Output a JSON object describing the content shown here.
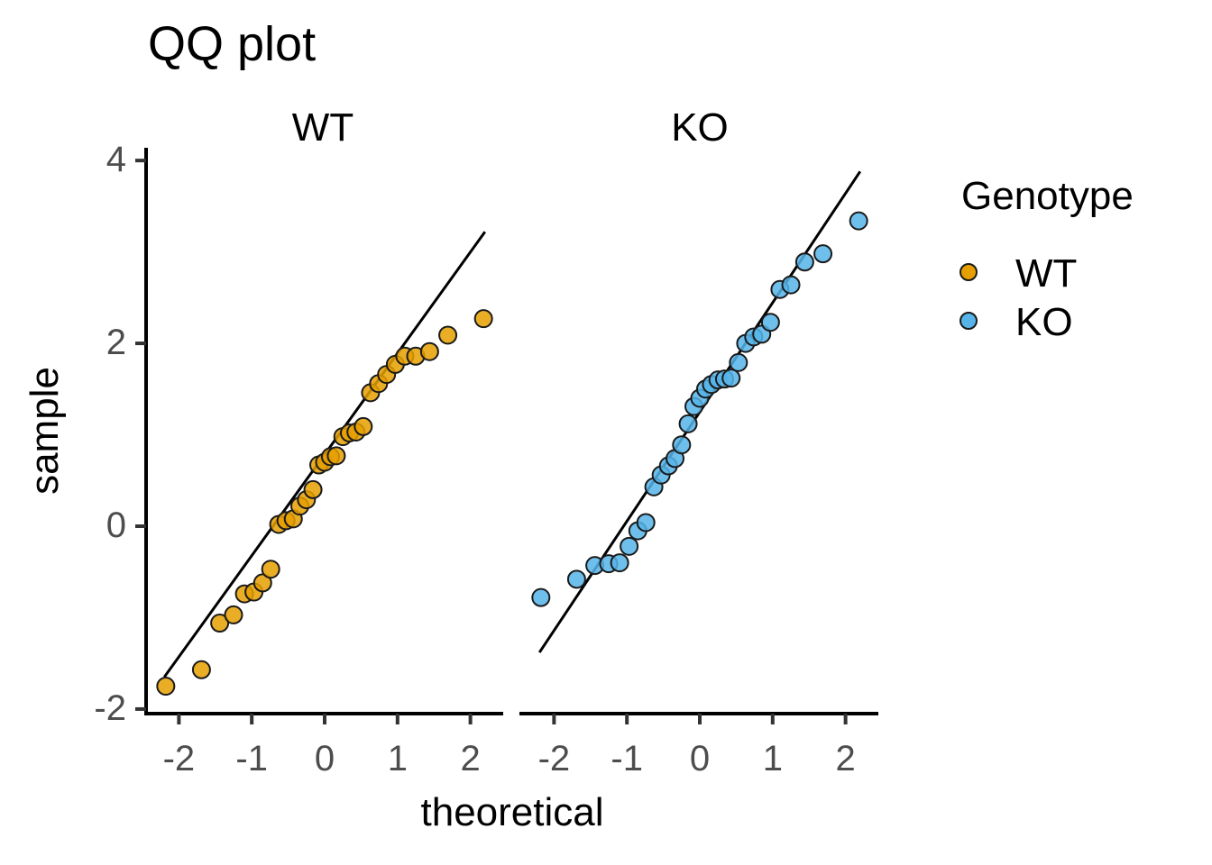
{
  "chart_data": {
    "type": "scatter",
    "title": "QQ plot",
    "xlabel": "theoretical",
    "ylabel": "sample",
    "xlim": [
      -2.45,
      2.45
    ],
    "ylim": [
      -2.05,
      4.1
    ],
    "x_ticks": [
      "-2",
      "-1",
      "0",
      "1",
      "2"
    ],
    "y_ticks": [
      "-2",
      "0",
      "2",
      "4"
    ],
    "legend": {
      "title": "Genotype",
      "position": "right"
    },
    "panels": [
      {
        "name": "WT",
        "color": "#E69F00",
        "line": {
          "x": [
            -2.2,
            2.2
          ],
          "y": [
            -1.65,
            3.22
          ]
        },
        "points": [
          {
            "x": -2.18,
            "y": -1.75
          },
          {
            "x": -1.69,
            "y": -1.57
          },
          {
            "x": -1.44,
            "y": -1.06
          },
          {
            "x": -1.25,
            "y": -0.97
          },
          {
            "x": -1.1,
            "y": -0.74
          },
          {
            "x": -0.97,
            "y": -0.72
          },
          {
            "x": -0.85,
            "y": -0.62
          },
          {
            "x": -0.74,
            "y": -0.47
          },
          {
            "x": -0.63,
            "y": 0.02
          },
          {
            "x": -0.53,
            "y": 0.06
          },
          {
            "x": -0.43,
            "y": 0.08
          },
          {
            "x": -0.34,
            "y": 0.22
          },
          {
            "x": -0.25,
            "y": 0.29
          },
          {
            "x": -0.16,
            "y": 0.4
          },
          {
            "x": -0.08,
            "y": 0.67
          },
          {
            "x": 0.0,
            "y": 0.7
          },
          {
            "x": 0.08,
            "y": 0.76
          },
          {
            "x": 0.16,
            "y": 0.77
          },
          {
            "x": 0.25,
            "y": 0.98
          },
          {
            "x": 0.34,
            "y": 1.02
          },
          {
            "x": 0.43,
            "y": 1.03
          },
          {
            "x": 0.53,
            "y": 1.09
          },
          {
            "x": 0.63,
            "y": 1.46
          },
          {
            "x": 0.74,
            "y": 1.56
          },
          {
            "x": 0.85,
            "y": 1.66
          },
          {
            "x": 0.97,
            "y": 1.77
          },
          {
            "x": 1.1,
            "y": 1.86
          },
          {
            "x": 1.25,
            "y": 1.86
          },
          {
            "x": 1.44,
            "y": 1.91
          },
          {
            "x": 1.69,
            "y": 2.09
          },
          {
            "x": 2.18,
            "y": 2.27
          }
        ]
      },
      {
        "name": "KO",
        "color": "#56B4E9",
        "line": {
          "x": [
            -2.2,
            2.2
          ],
          "y": [
            -1.38,
            3.88
          ]
        },
        "points": [
          {
            "x": -2.18,
            "y": -0.78
          },
          {
            "x": -1.69,
            "y": -0.58
          },
          {
            "x": -1.44,
            "y": -0.43
          },
          {
            "x": -1.25,
            "y": -0.41
          },
          {
            "x": -1.1,
            "y": -0.4
          },
          {
            "x": -0.97,
            "y": -0.22
          },
          {
            "x": -0.85,
            "y": -0.05
          },
          {
            "x": -0.74,
            "y": 0.04
          },
          {
            "x": -0.63,
            "y": 0.43
          },
          {
            "x": -0.53,
            "y": 0.56
          },
          {
            "x": -0.43,
            "y": 0.66
          },
          {
            "x": -0.34,
            "y": 0.74
          },
          {
            "x": -0.25,
            "y": 0.89
          },
          {
            "x": -0.16,
            "y": 1.12
          },
          {
            "x": -0.08,
            "y": 1.31
          },
          {
            "x": 0.0,
            "y": 1.4
          },
          {
            "x": 0.08,
            "y": 1.5
          },
          {
            "x": 0.16,
            "y": 1.55
          },
          {
            "x": 0.25,
            "y": 1.6
          },
          {
            "x": 0.34,
            "y": 1.61
          },
          {
            "x": 0.43,
            "y": 1.62
          },
          {
            "x": 0.53,
            "y": 1.79
          },
          {
            "x": 0.63,
            "y": 2.0
          },
          {
            "x": 0.74,
            "y": 2.07
          },
          {
            "x": 0.85,
            "y": 2.1
          },
          {
            "x": 0.97,
            "y": 2.23
          },
          {
            "x": 1.1,
            "y": 2.59
          },
          {
            "x": 1.25,
            "y": 2.64
          },
          {
            "x": 1.44,
            "y": 2.89
          },
          {
            "x": 1.69,
            "y": 2.98
          },
          {
            "x": 2.18,
            "y": 3.34
          }
        ]
      }
    ]
  }
}
